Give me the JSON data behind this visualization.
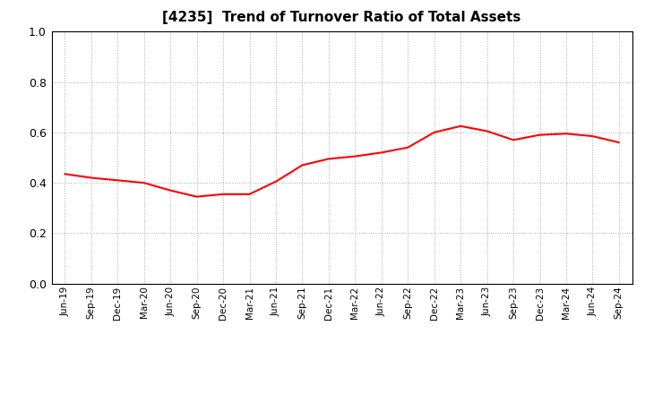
{
  "title": "[4235]  Trend of Turnover Ratio of Total Assets",
  "title_fontsize": 11,
  "line_color": "#FF0000",
  "line_width": 1.5,
  "background_color": "#FFFFFF",
  "grid_color": "#AAAAAA",
  "ylim": [
    0.0,
    1.0
  ],
  "yticks": [
    0.0,
    0.2,
    0.4,
    0.6,
    0.8,
    1.0
  ],
  "x_labels": [
    "Jun-19",
    "Sep-19",
    "Dec-19",
    "Mar-20",
    "Jun-20",
    "Sep-20",
    "Dec-20",
    "Mar-21",
    "Jun-21",
    "Sep-21",
    "Dec-21",
    "Mar-22",
    "Jun-22",
    "Sep-22",
    "Dec-22",
    "Mar-23",
    "Jun-23",
    "Sep-23",
    "Dec-23",
    "Mar-24",
    "Jun-24",
    "Sep-24"
  ],
  "y_values": [
    0.435,
    0.42,
    0.41,
    0.4,
    0.37,
    0.345,
    0.355,
    0.355,
    0.405,
    0.47,
    0.495,
    0.505,
    0.52,
    0.54,
    0.6,
    0.625,
    0.605,
    0.57,
    0.59,
    0.595,
    0.585,
    0.56
  ]
}
